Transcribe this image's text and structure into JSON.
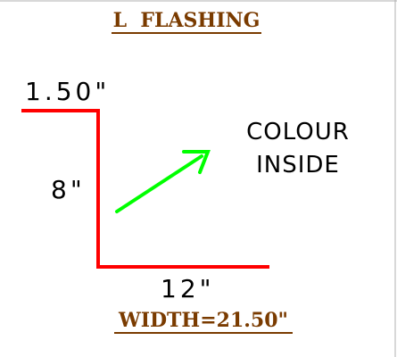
{
  "title": "L  FLASHING",
  "dimensions": {
    "top_leg": "1.50\"",
    "vertical": "8\"",
    "bottom_leg": "12\""
  },
  "note": {
    "line1": "COLOUR",
    "line2": "INSIDE"
  },
  "width_label": "WIDTH=21.50\"",
  "colors": {
    "title": "#7a3b00",
    "profile_line": "#ff0000",
    "arrow": "#00ff00",
    "text": "#000000",
    "border": "#b0b0b0"
  }
}
